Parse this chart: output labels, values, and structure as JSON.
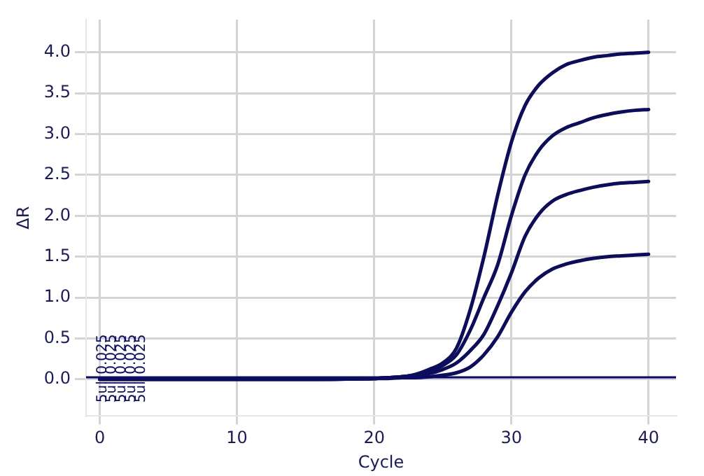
{
  "chart_data": {
    "type": "line",
    "xlabel": "Cycle",
    "ylabel": "ΔR",
    "x": [
      0,
      5,
      10,
      15,
      20,
      21,
      22,
      23,
      24,
      25,
      26,
      27,
      28,
      29,
      30,
      31,
      32,
      33,
      34,
      35,
      36,
      37,
      38,
      39,
      40
    ],
    "series": [
      {
        "color": "#0d0d5e",
        "values": [
          0,
          0,
          0,
          0,
          0.01,
          0.02,
          0.03,
          0.06,
          0.12,
          0.2,
          0.38,
          0.85,
          1.5,
          2.25,
          2.9,
          3.35,
          3.6,
          3.75,
          3.85,
          3.9,
          3.94,
          3.96,
          3.98,
          3.99,
          4.0
        ]
      },
      {
        "color": "#0d0d5e",
        "values": [
          0,
          0,
          0,
          0,
          0.01,
          0.02,
          0.03,
          0.05,
          0.1,
          0.17,
          0.3,
          0.6,
          1.0,
          1.4,
          2.0,
          2.5,
          2.8,
          2.98,
          3.08,
          3.14,
          3.2,
          3.24,
          3.27,
          3.29,
          3.3
        ]
      },
      {
        "color": "#0d0d5e",
        "values": [
          0,
          0,
          0,
          0,
          0.01,
          0.02,
          0.03,
          0.05,
          0.07,
          0.12,
          0.2,
          0.35,
          0.55,
          0.9,
          1.3,
          1.75,
          2.02,
          2.18,
          2.26,
          2.31,
          2.35,
          2.38,
          2.4,
          2.41,
          2.42
        ]
      },
      {
        "color": "#0d0d5e",
        "values": [
          0,
          0,
          0,
          0,
          0.01,
          0.01,
          0.02,
          0.02,
          0.03,
          0.05,
          0.08,
          0.15,
          0.3,
          0.52,
          0.82,
          1.07,
          1.24,
          1.35,
          1.41,
          1.45,
          1.48,
          1.5,
          1.51,
          1.52,
          1.53
        ]
      }
    ],
    "xlim": [
      -1,
      42
    ],
    "xticks": [
      0,
      10,
      20,
      30,
      40
    ],
    "ylim": [
      -0.45,
      4.4
    ],
    "yticks": [
      {
        "value": 0,
        "label": "0.0"
      },
      0.5,
      {
        "value": 1,
        "label": "1.0"
      },
      1.5,
      {
        "value": 2,
        "label": "2.0"
      },
      2.5,
      {
        "value": 3,
        "label": "3.0"
      },
      3.5,
      {
        "value": 4,
        "label": "4.0"
      }
    ],
    "ref_lines": [
      {
        "axis": "y",
        "value": 0.025,
        "color": "#0a0a6b"
      }
    ],
    "annotations": [
      {
        "text": "0.025",
        "x": 0.2,
        "y": 0.06
      },
      {
        "text": "0.025",
        "x": 0.9,
        "y": 0.06
      },
      {
        "text": "0.025",
        "x": 1.6,
        "y": 0.06
      },
      {
        "text": "0.025",
        "x": 2.3,
        "y": 0.06
      },
      {
        "text": "0.025",
        "x": 3.0,
        "y": 0.06
      },
      {
        "text": "5ul",
        "x": 0.2,
        "y": -0.02
      },
      {
        "text": "5ul",
        "x": 0.9,
        "y": -0.02
      },
      {
        "text": "5ul",
        "x": 1.6,
        "y": -0.02
      },
      {
        "text": "5ul",
        "x": 2.3,
        "y": -0.02
      },
      {
        "text": "5ul",
        "x": 3.0,
        "y": -0.02
      }
    ],
    "grid": true,
    "legend": false,
    "marker": "none",
    "line_style": "solid"
  }
}
